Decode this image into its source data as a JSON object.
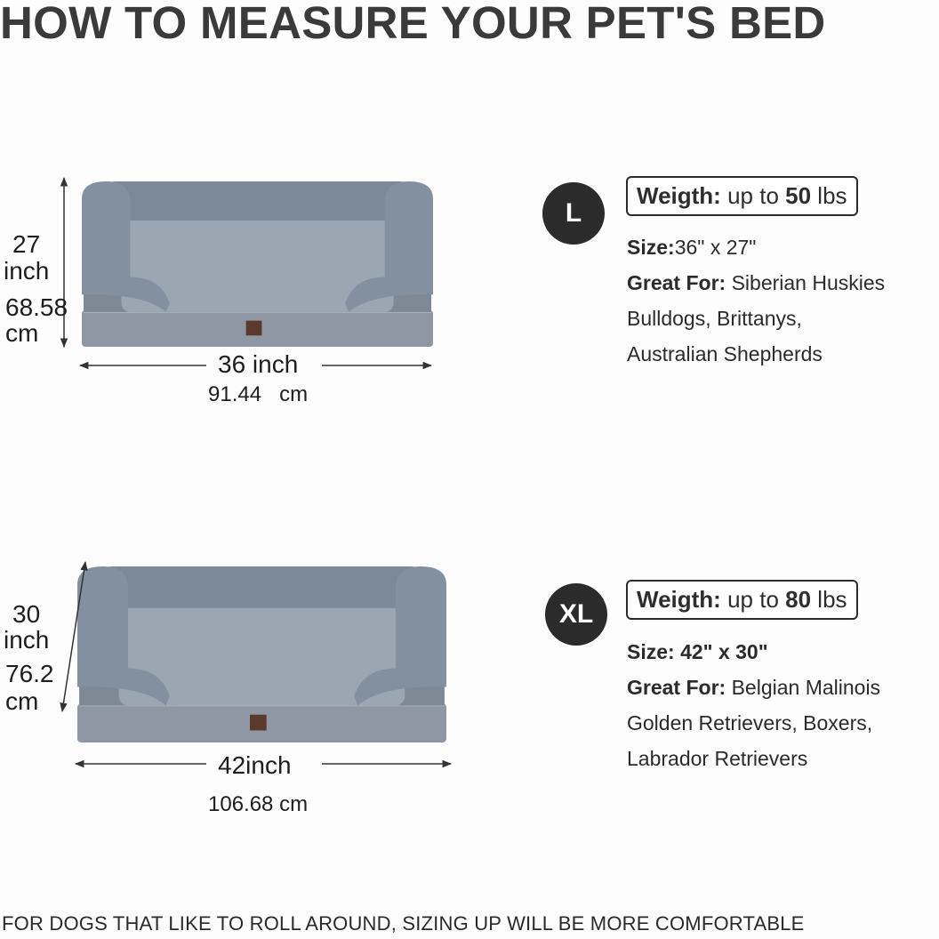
{
  "title": "HOW TO MEASURE YOUR PET'S BED",
  "footer": "FOR DOGS THAT LIKE TO ROLL AROUND, SIZING UP WILL BE MORE COMFORTABLE",
  "colors": {
    "badge": "#2b2b2b",
    "bed_fur": "#8593a1",
    "bed_base": "#8e97a3"
  },
  "sizes": [
    {
      "badge": "L",
      "height_value": "27",
      "height_unit": "inch",
      "height_cm": "68.58",
      "height_cm_unit": "cm",
      "width_label": "36 inch",
      "width_cm": "91.44   cm",
      "weight_label": "Weigth:",
      "weight_pre": "up to",
      "weight_value": "50",
      "weight_unit": "lbs",
      "size_label": "Size:",
      "size_value": "36\" x 27\"",
      "great_for_label": "Great For:",
      "great_for_lines": [
        "Siberian Huskies",
        "Bulldogs, Brittanys,",
        "Australian Shepherds"
      ]
    },
    {
      "badge": "XL",
      "height_value": "30",
      "height_unit": "inch",
      "height_cm": "76.2",
      "height_cm_unit": "cm",
      "width_label": "42inch",
      "width_cm": "106.68 cm",
      "weight_label": "Weigth:",
      "weight_pre": "up to",
      "weight_value": "80",
      "weight_unit": "lbs",
      "size_label": "Size:",
      "size_value": "42\" x 30\"",
      "great_for_label": "Great For:",
      "great_for_lines": [
        "Belgian Malinois",
        "Golden Retrievers, Boxers,",
        "Labrador Retrievers"
      ]
    }
  ]
}
